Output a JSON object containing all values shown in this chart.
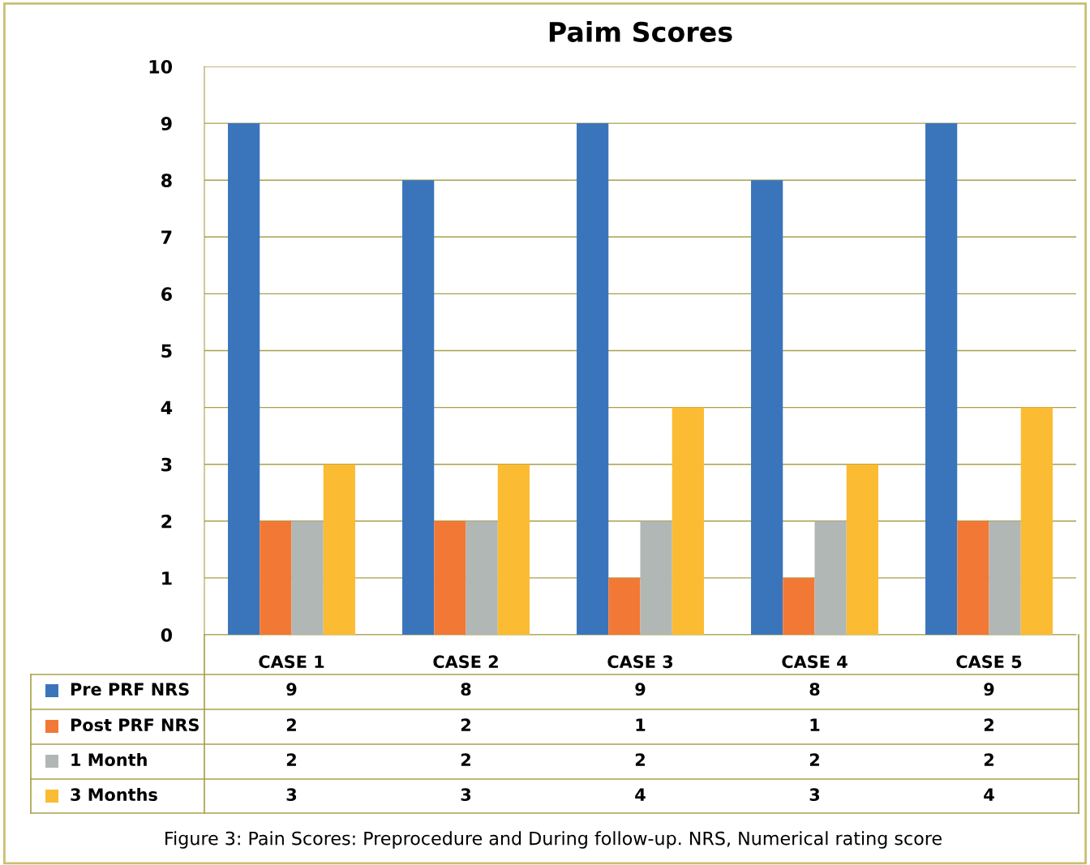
{
  "chart_data": {
    "type": "bar",
    "title": "Paim Scores",
    "categories": [
      "CASE 1",
      "CASE 2",
      "CASE 3",
      "CASE 4",
      "CASE 5"
    ],
    "series": [
      {
        "name": "Pre PRF NRS",
        "color": "#3a75bb",
        "values": [
          9,
          8,
          9,
          8,
          9
        ]
      },
      {
        "name": "Post PRF NRS",
        "color": "#f27835",
        "values": [
          2,
          2,
          1,
          1,
          2
        ]
      },
      {
        "name": "1 Month",
        "color": "#b0b7b5",
        "values": [
          2,
          2,
          2,
          2,
          2
        ]
      },
      {
        "name": "3 Months",
        "color": "#fbbb33",
        "values": [
          3,
          3,
          4,
          3,
          4
        ]
      }
    ],
    "ylim": [
      0,
      10
    ],
    "yticks": [
      0,
      1,
      2,
      3,
      4,
      5,
      6,
      7,
      8,
      9,
      10
    ],
    "grid": "y",
    "legend": "bottom",
    "data_labels": true,
    "annotations": [
      "Figure 3: Pain Scores: Preprocedure and During follow-up. NRS, Numerical rating score"
    ]
  }
}
